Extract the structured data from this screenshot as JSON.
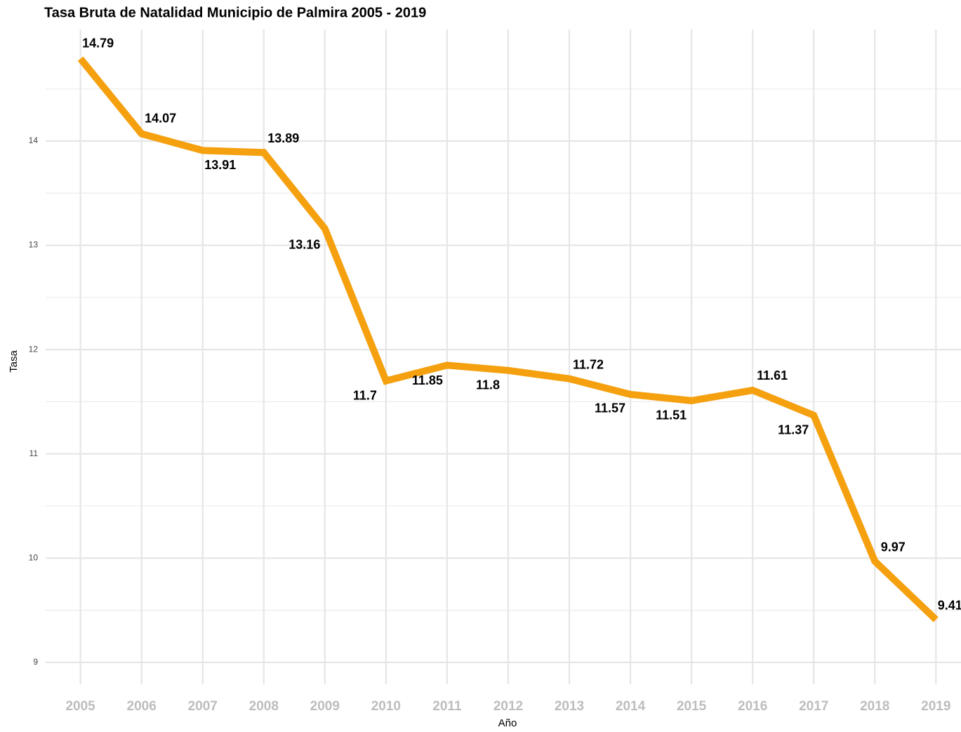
{
  "chart_data": {
    "type": "line",
    "title": "Tasa Bruta de Natalidad Municipio de Palmira 2005 - 2019",
    "xlabel": "Año",
    "ylabel": "Tasa",
    "x": [
      2005,
      2006,
      2007,
      2008,
      2009,
      2010,
      2011,
      2012,
      2013,
      2014,
      2015,
      2016,
      2017,
      2018,
      2019
    ],
    "series": [
      {
        "name": "Tasa",
        "color": "#f5a00f",
        "values": [
          14.79,
          14.07,
          13.91,
          13.89,
          13.16,
          11.7,
          11.85,
          11.8,
          11.72,
          11.57,
          11.51,
          11.61,
          11.37,
          9.97,
          9.41
        ]
      }
    ],
    "xlim": [
      2004.43,
      2019.41
    ],
    "xticks": [
      2005,
      2006,
      2007,
      2008,
      2009,
      2010,
      2011,
      2012,
      2013,
      2014,
      2015,
      2016,
      2017,
      2018,
      2019
    ],
    "ylim": [
      8.79,
      15.05
    ],
    "yticks": [
      9,
      10,
      11,
      12,
      13,
      14
    ],
    "grid": true
  }
}
